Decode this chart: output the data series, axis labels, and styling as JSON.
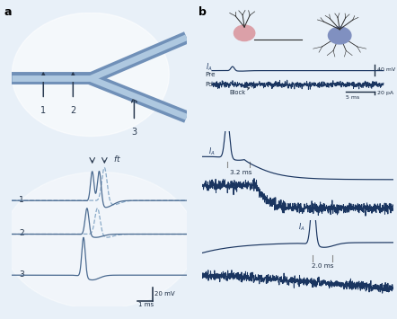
{
  "fig_width": 4.42,
  "fig_height": 3.55,
  "dpi": 100,
  "bg_outer": "#e8f0f8",
  "panel_a_bg": "#dde8f2",
  "panel_b_bg": "#c8dcea",
  "axon_fill": "#7090b8",
  "axon_highlight": "#aec8e0",
  "trace_solid": "#4a6a90",
  "trace_dashed": "#8aaac8",
  "trace_dark": "#1a3560",
  "noise_col": "#1a3560",
  "text_col": "#1a2a40",
  "scale_col": "#1a2a40",
  "arrow_col": "#2a3a50",
  "label_fontsize": 9,
  "tick_fontsize": 5.5,
  "annot_fontsize": 6
}
